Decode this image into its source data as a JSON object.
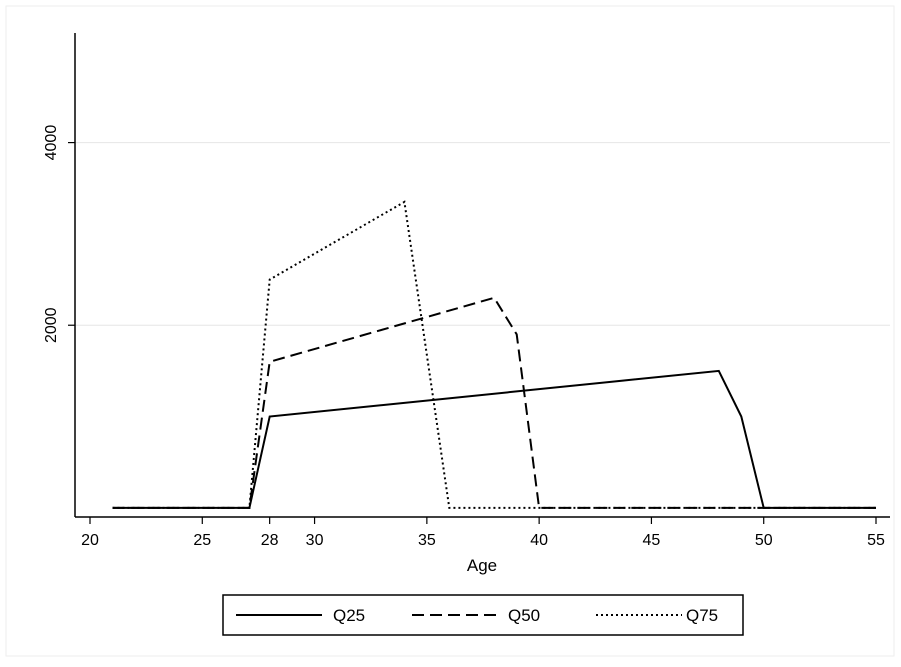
{
  "chart_data": {
    "type": "line",
    "xlabel": "Age",
    "ylabel": "",
    "xlim": [
      20,
      55
    ],
    "ylim": [
      -100,
      5200
    ],
    "xticks": [
      20,
      25,
      28,
      30,
      35,
      40,
      45,
      50,
      55
    ],
    "yticks": [
      2000,
      4000
    ],
    "ygrid": true,
    "legend_position": "bottom",
    "series": [
      {
        "name": "Q25",
        "style": "solid",
        "x": [
          21,
          27,
          27.1,
          28,
          48,
          49,
          50,
          55
        ],
        "y": [
          0,
          0,
          0,
          1000,
          1500,
          1000,
          0,
          0
        ]
      },
      {
        "name": "Q50",
        "style": "dashed",
        "x": [
          21,
          27,
          27.1,
          28,
          38,
          39,
          40,
          55
        ],
        "y": [
          0,
          0,
          0,
          1600,
          2300,
          1900,
          0,
          0
        ]
      },
      {
        "name": "Q75",
        "style": "dotted",
        "x": [
          21,
          27,
          27.1,
          28,
          34,
          36,
          55
        ],
        "y": [
          0,
          0,
          0,
          2500,
          3350,
          0,
          0
        ]
      }
    ]
  }
}
